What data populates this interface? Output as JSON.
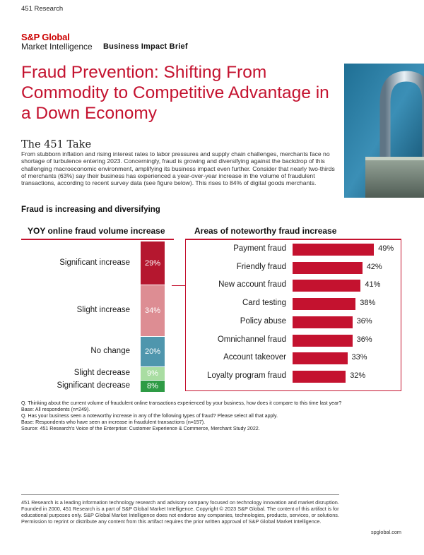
{
  "header": {
    "top_label": "451 Research",
    "brand_name": "S&P Global",
    "brand_sub": "Market Intelligence",
    "brief_label": "Business Impact Brief"
  },
  "title": "Fraud Prevention: Shifting From Commodity to Competitive Advantage in a Down Economy",
  "take": {
    "heading": "The 451 Take",
    "body": "From stubborn inflation and rising interest rates to labor pressures and supply chain challenges, merchants face no shortage of turbulence entering 2023. Concerningly, fraud is growing and diversifying against the backdrop of this challenging macroeconomic environment, amplifying its business impact even further. Consider that nearly two-thirds of merchants (63%) say their business has experienced a year-over-year increase in the volume of fraudulent transactions, according to recent survey data (see figure below). This rises to 84% of digital goods merchants."
  },
  "section_heading": "Fraud is increasing and diversifying",
  "colors": {
    "accent": "#c4122f",
    "stack": [
      "#b5172f",
      "#dd8d93",
      "#4f96ad",
      "#a9dda2",
      "#2e9b45"
    ]
  },
  "chart_data": [
    {
      "type": "stacked-bar",
      "title": "YOY online fraud volume increase",
      "categories": [
        "Significant increase",
        "Slight increase",
        "No change",
        "Slight decrease",
        "Significant decrease"
      ],
      "values": [
        29,
        34,
        20,
        9,
        8
      ],
      "labels": [
        "29%",
        "34%",
        "20%",
        "9%",
        "8%"
      ],
      "unit": "%"
    },
    {
      "type": "bar",
      "orientation": "horizontal",
      "title": "Areas of noteworthy fraud increase",
      "categories": [
        "Payment fraud",
        "Friendly fraud",
        "New account fraud",
        "Card testing",
        "Policy abuse",
        "Omnichannel fraud",
        "Account takeover",
        "Loyalty program fraud"
      ],
      "values": [
        49,
        42,
        41,
        38,
        36,
        36,
        33,
        32
      ],
      "labels": [
        "49%",
        "42%",
        "41%",
        "38%",
        "36%",
        "36%",
        "33%",
        "32%"
      ],
      "unit": "%"
    }
  ],
  "notes": [
    "Q. Thinking about the current volume of fraudulent online transactions experienced by your business, how does it compare to this time last year?",
    "Base: All respondents (n=249).",
    "Q. Has your business seen a noteworthy increase in any of the following types of fraud? Please select all that apply.",
    "Base: Respondents who have seen an increase in fraudulent transactions (n=157).",
    "Source: 451 Research's Voice of the Enterprise: Customer Experience & Commerce, Merchant Study 2022."
  ],
  "footer": {
    "text": "451 Research is a leading information technology research and advisory company focused on technology innovation and market disruption. Founded in 2000, 451 Research is a part of S&P Global Market Intelligence. Copyright © 2023 S&P Global. The content of this artifact is for educational purposes only. S&P Global Market Intelligence does not endorse any companies, technologies, products, services, or solutions. Permission to reprint or distribute any content from this artifact requires the prior written approval of S&P Global Market Intelligence.",
    "site": "spglobal.com"
  }
}
